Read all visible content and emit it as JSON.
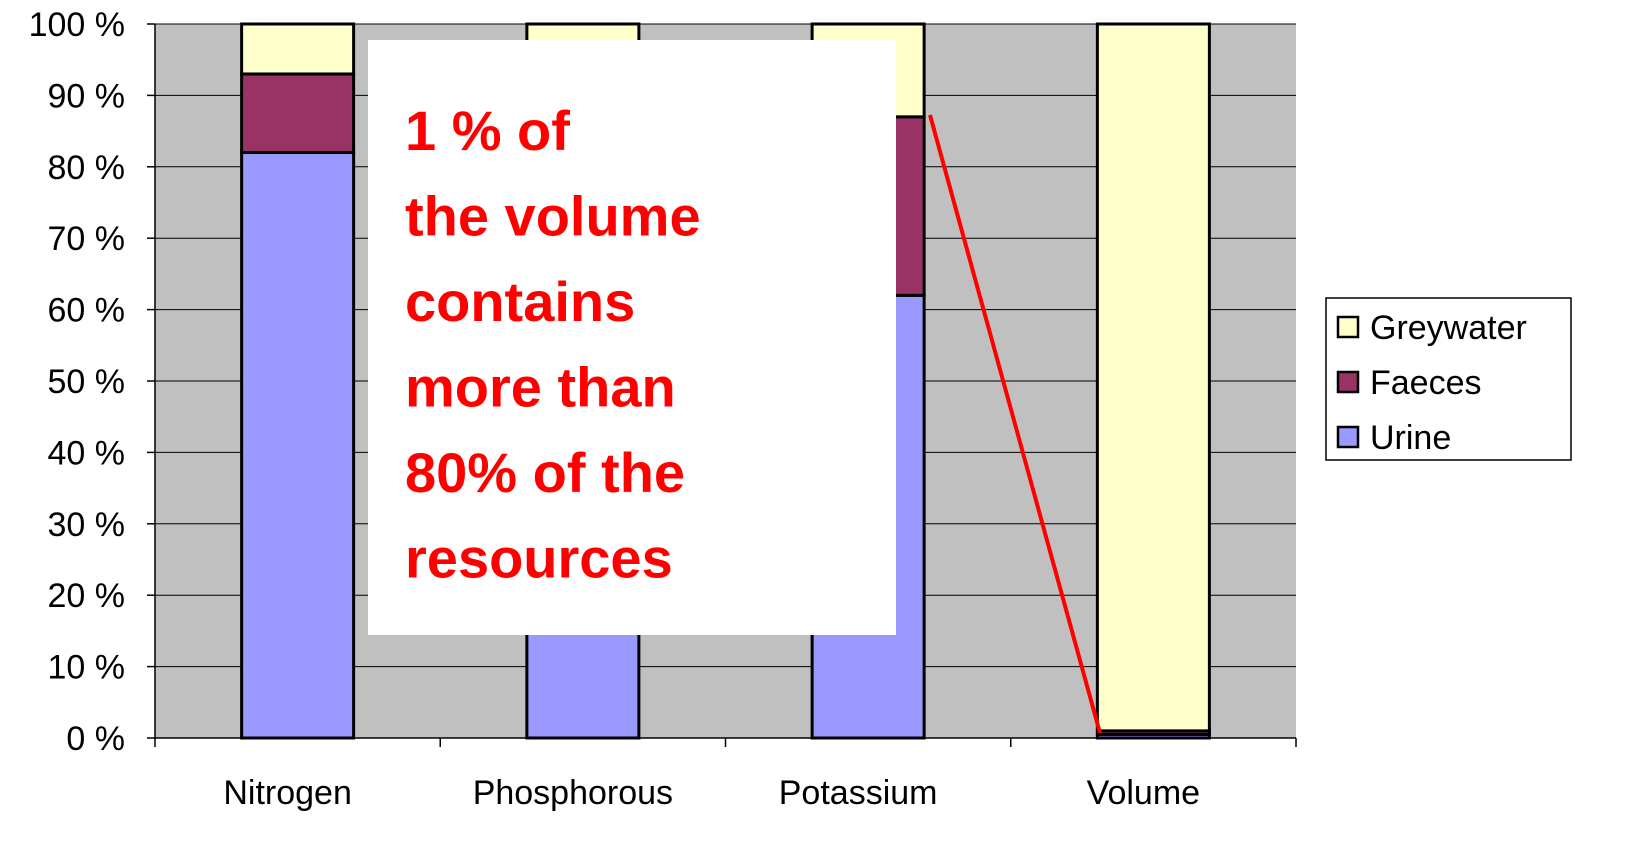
{
  "chart_data": {
    "type": "stacked_bar",
    "categories": [
      "Nitrogen",
      "Phosphorous",
      "Potassium",
      "Volume"
    ],
    "series": [
      {
        "name": "Urine",
        "color": "#9999ff",
        "values": [
          82,
          53,
          62,
          0.5
        ]
      },
      {
        "name": "Faeces",
        "color": "#993366",
        "values": [
          11,
          37,
          25,
          0.5
        ]
      },
      {
        "name": "Greywater",
        "color": "#ffffcc",
        "values": [
          7,
          10,
          13,
          99
        ]
      }
    ],
    "ylim": [
      0,
      100
    ],
    "yticks": [
      {
        "value": 0,
        "label": "0 %"
      },
      {
        "value": 10,
        "label": "10 %"
      },
      {
        "value": 20,
        "label": "20 %"
      },
      {
        "value": 30,
        "label": "30 %"
      },
      {
        "value": 40,
        "label": "40 %"
      },
      {
        "value": 50,
        "label": "50 %"
      },
      {
        "value": 60,
        "label": "60 %"
      },
      {
        "value": 70,
        "label": "70 %"
      },
      {
        "value": 80,
        "label": "80 %"
      },
      {
        "value": 90,
        "label": "90 %"
      },
      {
        "value": 100,
        "label": "100 %"
      }
    ],
    "grid": true,
    "legend": "right",
    "annotation": [
      "1 % of",
      "the volume",
      "contains",
      "more than",
      "80% of the",
      "resources"
    ]
  }
}
